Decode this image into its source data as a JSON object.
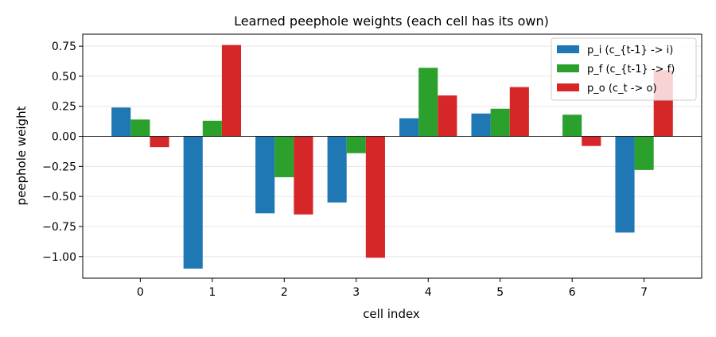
{
  "chart_data": {
    "type": "bar",
    "title": "Learned peephole weights (each cell has its own)",
    "xlabel": "cell index",
    "ylabel": "peephole weight",
    "categories": [
      "0",
      "1",
      "2",
      "3",
      "4",
      "5",
      "6",
      "7"
    ],
    "ylim": [
      -1.18,
      0.85
    ],
    "yticks": [
      0.75,
      0.5,
      0.25,
      0.0,
      -0.25,
      -0.5,
      -0.75,
      -1.0
    ],
    "ytick_labels": [
      "0.75",
      "0.50",
      "0.25",
      "0.00",
      "−0.25",
      "−0.50",
      "−0.75",
      "−1.00"
    ],
    "grid": "horizontal",
    "legend_position": "top-right",
    "series": [
      {
        "name": "p_i (c_{t-1} -> i)",
        "color": "#1f77b4",
        "values": [
          0.24,
          -1.1,
          -0.64,
          -0.55,
          0.15,
          0.19,
          0.0,
          -0.8
        ]
      },
      {
        "name": "p_f (c_{t-1} -> f)",
        "color": "#2ca02c",
        "values": [
          0.14,
          0.13,
          -0.34,
          -0.14,
          0.57,
          0.23,
          0.18,
          -0.28
        ]
      },
      {
        "name": "p_o (c_t -> o)",
        "color": "#d62728",
        "values": [
          -0.09,
          0.76,
          -0.65,
          -1.01,
          0.34,
          0.41,
          -0.08,
          0.55
        ]
      }
    ]
  }
}
